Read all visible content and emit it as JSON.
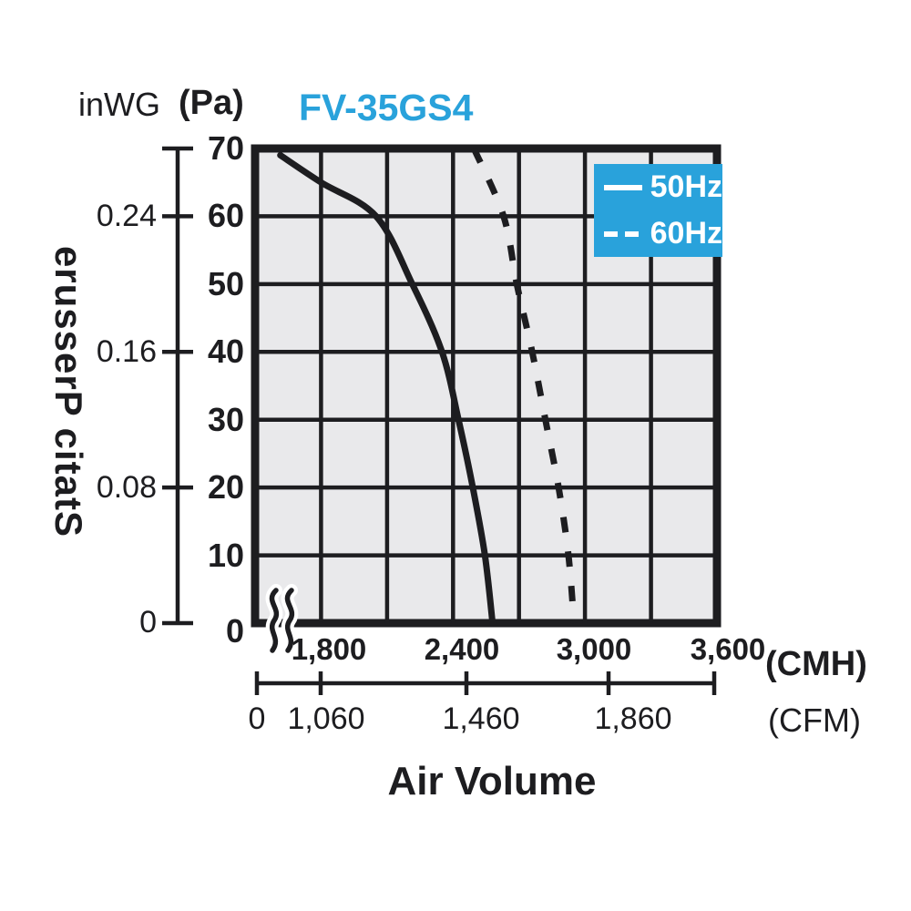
{
  "header": {
    "y_unit_secondary": "inWG",
    "y_unit_primary": "(Pa)",
    "title": "FV-35GS4"
  },
  "legend": {
    "items": [
      {
        "label": "50Hz",
        "line": "solid"
      },
      {
        "label": "60Hz",
        "line": "dashed"
      }
    ]
  },
  "y_axis": {
    "label": "Static Pressure",
    "pa_ticks": [
      "70",
      "60",
      "50",
      "40",
      "30",
      "20",
      "10",
      "0"
    ],
    "inwg_ticks": [
      "0.24",
      "0.16",
      "0.08",
      "0"
    ]
  },
  "x_axis": {
    "label": "Air Volume",
    "cmh_ticks": [
      "1,800",
      "2,400",
      "3,000",
      "3,600"
    ],
    "cmh_unit": "(CMH)",
    "cfm_ticks": [
      "0",
      "1,060",
      "1,460",
      "1,860"
    ],
    "cfm_unit": "(CFM)"
  },
  "colors": {
    "accent": "#29A2DB",
    "grid_bg": "#E9E9EB",
    "ink": "#1D1D20"
  },
  "chart_data": {
    "type": "line",
    "title": "FV-35GS4",
    "xlabel": "Air Volume",
    "ylabel": "Static Pressure",
    "grid": true,
    "legend_position": "top-right",
    "x_axis_primary": {
      "unit": "CMH",
      "ticks": [
        1800,
        2400,
        3000,
        3600
      ],
      "origin_label": 0,
      "axis_break_before": 1800
    },
    "x_axis_secondary": {
      "unit": "CFM",
      "ticks": [
        0,
        1060,
        1460,
        1860
      ]
    },
    "y_axis_primary": {
      "unit": "Pa",
      "ticks": [
        0,
        10,
        20,
        30,
        40,
        50,
        60,
        70
      ],
      "range": [
        0,
        70
      ]
    },
    "y_axis_secondary": {
      "unit": "inWG",
      "ticks": [
        0,
        0.08,
        0.16,
        0.24
      ]
    },
    "series": [
      {
        "name": "50Hz",
        "style": "solid",
        "points": [
          [
            1615,
            69
          ],
          [
            1800,
            65
          ],
          [
            2050,
            60
          ],
          [
            2215,
            50
          ],
          [
            2350,
            40
          ],
          [
            2425,
            30
          ],
          [
            2490,
            20
          ],
          [
            2545,
            10
          ],
          [
            2580,
            0
          ]
        ]
      },
      {
        "name": "60Hz",
        "style": "dashed",
        "points": [
          [
            2495,
            70
          ],
          [
            2630,
            60
          ],
          [
            2690,
            50
          ],
          [
            2760,
            40
          ],
          [
            2820,
            30
          ],
          [
            2880,
            20
          ],
          [
            2925,
            10
          ],
          [
            2950,
            0
          ]
        ]
      }
    ]
  }
}
